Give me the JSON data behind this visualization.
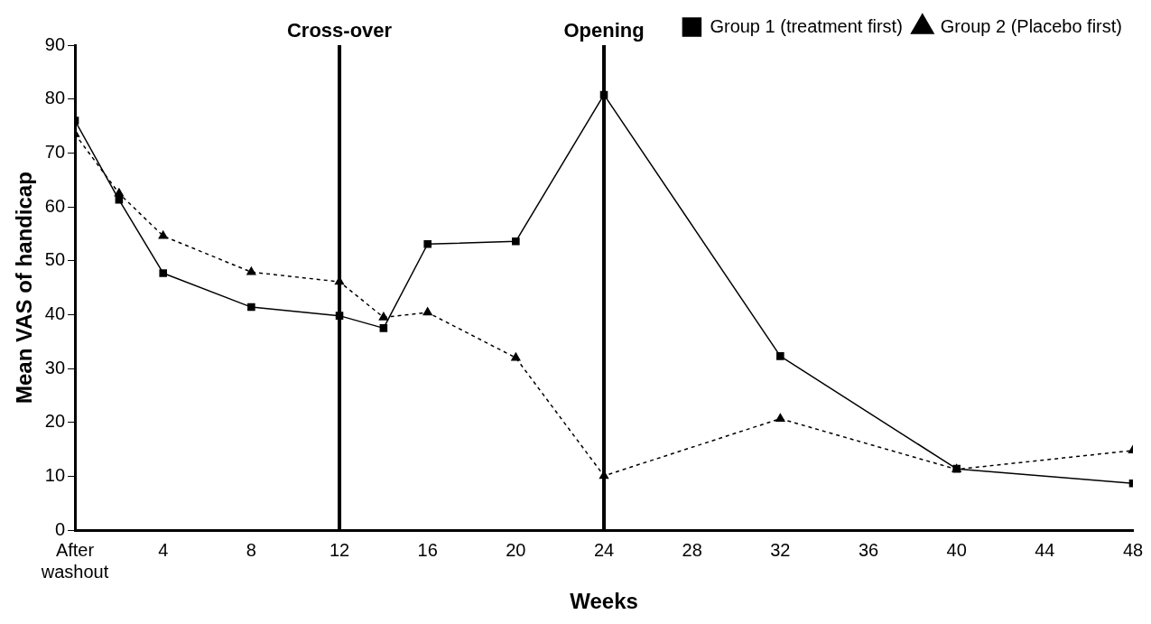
{
  "chart_data": {
    "type": "line",
    "xlabel": "Weeks",
    "ylabel": "Mean VAS of handicap",
    "x": [
      0,
      2,
      4,
      8,
      12,
      14,
      16,
      20,
      24,
      32,
      40,
      48
    ],
    "series": [
      {
        "name": "Group 1 (treatment first)",
        "color": "#000000",
        "marker": "square",
        "line_style": "solid",
        "values": [
          76,
          61.3,
          47.7,
          41.4,
          39.8,
          37.5,
          53.1,
          53.6,
          80.8,
          32.3,
          11.4,
          8.7
        ]
      },
      {
        "name": "Group 2 (Placebo first)",
        "color": "#000000",
        "marker": "triangle",
        "line_style": "dashed",
        "values": [
          73.5,
          62.5,
          54.6,
          47.9,
          46.1,
          39.5,
          40.4,
          32.0,
          10.1,
          20.7,
          11.3,
          14.8
        ]
      }
    ],
    "xlim": [
      0,
      48
    ],
    "ylim": [
      0,
      90
    ],
    "xticks": [
      {
        "value": 0,
        "label": "After washout"
      },
      4,
      8,
      12,
      16,
      20,
      24,
      28,
      32,
      36,
      40,
      44,
      48
    ],
    "yticks": [
      0,
      10,
      20,
      30,
      40,
      50,
      60,
      70,
      80,
      90
    ],
    "ref_lines": [
      {
        "axis": "x",
        "value": 12,
        "label": "Cross-over",
        "color": "#000000"
      },
      {
        "axis": "x",
        "value": 24,
        "label": "Opening",
        "color": "#000000"
      }
    ],
    "grid": false,
    "legend": "top right"
  }
}
